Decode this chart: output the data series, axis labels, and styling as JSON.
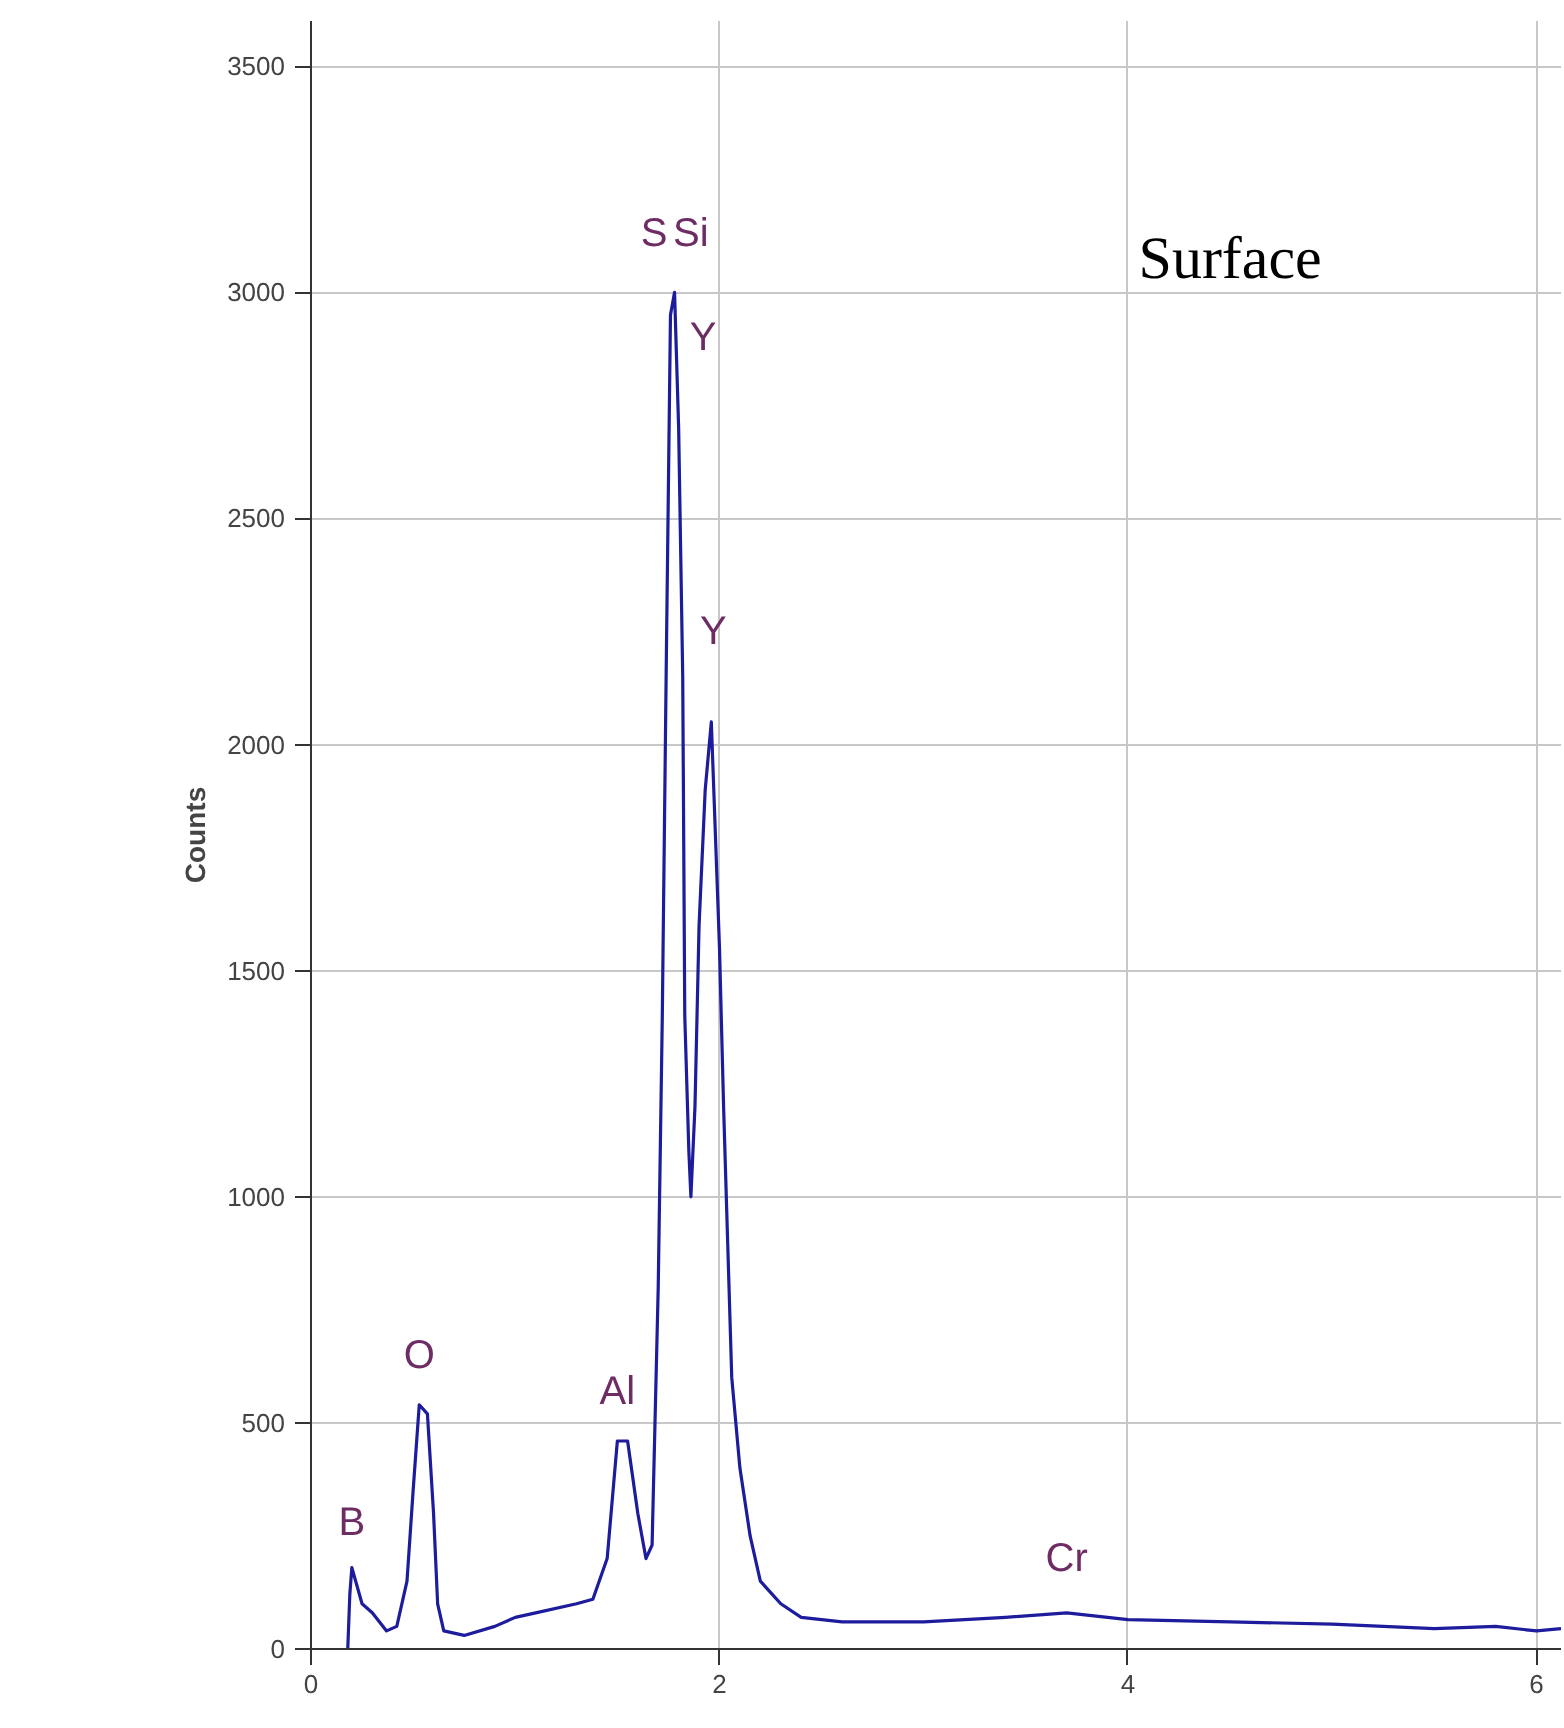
{
  "chart_data": {
    "type": "line",
    "ylabel": "Counts",
    "xlim": [
      0,
      6.12
    ],
    "ylim": [
      0,
      3600
    ],
    "xticks": [
      0,
      2,
      4,
      6
    ],
    "yticks": [
      0,
      500,
      1000,
      1500,
      2000,
      2500,
      3000,
      3500
    ],
    "grid": true,
    "marker": "none",
    "line_style": "solid",
    "x": [
      0.18,
      0.19,
      0.2,
      0.25,
      0.3,
      0.37,
      0.42,
      0.47,
      0.5,
      0.53,
      0.57,
      0.6,
      0.62,
      0.65,
      0.75,
      0.9,
      1.0,
      1.1,
      1.3,
      1.38,
      1.45,
      1.5,
      1.55,
      1.6,
      1.64,
      1.67,
      1.7,
      1.72,
      1.74,
      1.76,
      1.78,
      1.8,
      1.82,
      1.83,
      1.85,
      1.86,
      1.88,
      1.9,
      1.93,
      1.96,
      1.98,
      2.0,
      2.02,
      2.04,
      2.06,
      2.1,
      2.15,
      2.2,
      2.3,
      2.4,
      2.6,
      3.0,
      3.4,
      3.7,
      4.0,
      4.5,
      5.0,
      5.5,
      5.8,
      6.0,
      6.12
    ],
    "series": [
      {
        "color": "#1c1c9c",
        "values": [
          0,
          120,
          180,
          100,
          80,
          40,
          50,
          150,
          350,
          540,
          520,
          300,
          100,
          40,
          30,
          50,
          70,
          80,
          100,
          110,
          200,
          460,
          460,
          300,
          200,
          230,
          800,
          1400,
          2200,
          2950,
          3000,
          2700,
          2150,
          1400,
          1100,
          1000,
          1200,
          1600,
          1900,
          2050,
          1800,
          1550,
          1200,
          900,
          600,
          400,
          250,
          150,
          100,
          70,
          60,
          60,
          70,
          80,
          65,
          60,
          55,
          45,
          50,
          40,
          45
        ]
      }
    ],
    "annotations": [
      "B",
      "O",
      "Al",
      "S",
      "Si",
      "Y",
      "Y",
      "Cr",
      "Surface"
    ]
  }
}
